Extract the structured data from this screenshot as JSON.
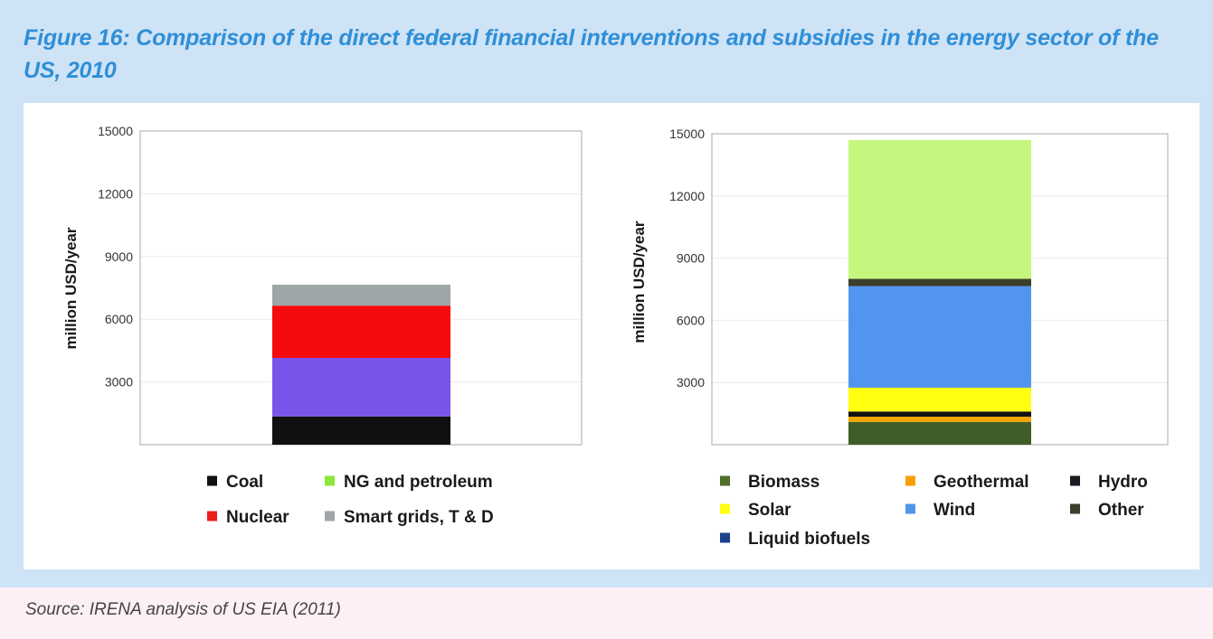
{
  "title": "Figure 16: Comparison of the direct federal financial interventions and subsidies in the energy sector of the US, 2010",
  "source": "Source: IRENA analysis of US EIA (2011)",
  "chart_data": [
    {
      "type": "bar",
      "stacked": true,
      "ylabel": "million USD/year",
      "ylim": [
        0,
        15000
      ],
      "yticks": [
        "3000",
        "6000",
        "9000",
        "12000",
        "15000"
      ],
      "grid": true,
      "legend_position": "bottom",
      "categories": [
        ""
      ],
      "series": [
        {
          "name": "Coal",
          "values": [
            1350
          ],
          "color": "#111111"
        },
        {
          "name": "NG and petroleum",
          "values": [
            2800
          ],
          "color": "#7b55ea"
        },
        {
          "name": "Nuclear",
          "values": [
            2500
          ],
          "color": "#f50a0e"
        },
        {
          "name": "Smart grids, T & D",
          "values": [
            1000
          ],
          "color": "#9ea6a8"
        }
      ],
      "legend": [
        {
          "name": "Coal",
          "color": "#111111"
        },
        {
          "name": "NG and petroleum",
          "color": "#8ee63a"
        },
        {
          "name": "Nuclear",
          "color": "#ef1d1d"
        },
        {
          "name": "Smart grids, T & D",
          "color": "#9ea6a8"
        }
      ]
    },
    {
      "type": "bar",
      "stacked": true,
      "ylabel": "million USD/year",
      "ylim": [
        0,
        15000
      ],
      "yticks": [
        "3000",
        "6000",
        "9000",
        "12000",
        "15000"
      ],
      "grid": true,
      "legend_position": "bottom",
      "categories": [
        ""
      ],
      "series": [
        {
          "name": "Biomass",
          "values": [
            1100
          ],
          "color": "#3f5e27"
        },
        {
          "name": "Geothermal",
          "values": [
            250
          ],
          "color": "#f2a500"
        },
        {
          "name": "Hydro",
          "values": [
            250
          ],
          "color": "#111111"
        },
        {
          "name": "Solar",
          "values": [
            1150
          ],
          "color": "#ffff12"
        },
        {
          "name": "Wind",
          "values": [
            4900
          ],
          "color": "#5295f0"
        },
        {
          "name": "Other",
          "values": [
            350
          ],
          "color": "#3e3e2d"
        },
        {
          "name": "Liquid biofuels",
          "values": [
            6700
          ],
          "color": "#c5f77e"
        }
      ],
      "legend": [
        {
          "name": "Biomass",
          "color": "#4f6e2a"
        },
        {
          "name": "Geothermal",
          "color": "#f5a000"
        },
        {
          "name": "Hydro",
          "color": "#1b1b23"
        },
        {
          "name": "Solar",
          "color": "#ffff12"
        },
        {
          "name": "Wind",
          "color": "#4d97ea"
        },
        {
          "name": "Other",
          "color": "#3e3e2d"
        },
        {
          "name": "Liquid biofuels",
          "color": "#1e3f8a"
        }
      ]
    }
  ]
}
